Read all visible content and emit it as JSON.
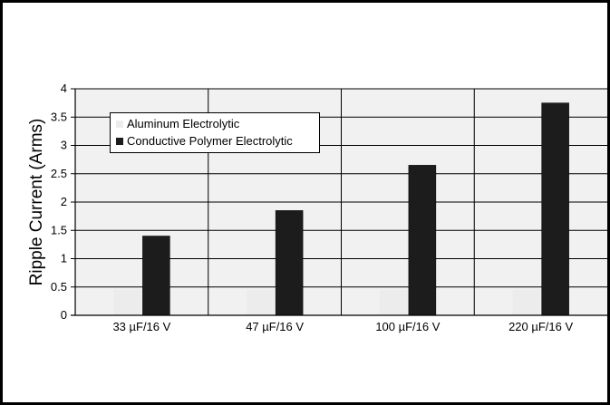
{
  "chart_data": {
    "type": "bar",
    "title": "",
    "xlabel": "",
    "ylabel": "Ripple Current (Arms)",
    "categories": [
      "33 µF/16 V",
      "47 µF/16 V",
      "100 µF/16 V",
      "220 µF/16 V"
    ],
    "series": [
      {
        "name": "Aluminum Electrolytic",
        "color": "#ececec",
        "values": [
          0.45,
          0.45,
          0.45,
          0.45
        ]
      },
      {
        "name": "Conductive Polymer Electrolytic",
        "color": "#1c1c1c",
        "values": [
          1.4,
          1.85,
          2.65,
          3.75
        ]
      }
    ],
    "ylim": [
      0,
      4
    ],
    "yticks": [
      "0",
      "0.5",
      "1",
      "1.5",
      "2",
      "2.5",
      "3",
      "3.5",
      "4"
    ],
    "grid": true,
    "legend_position": "top-left"
  }
}
